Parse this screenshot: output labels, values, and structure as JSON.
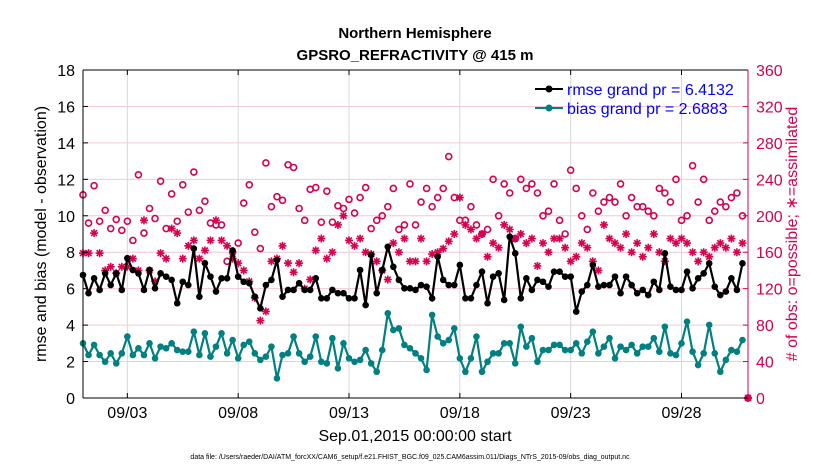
{
  "chart_data": {
    "type": "line",
    "title": [
      "Northern Hemisphere",
      "GPSRO_REFRACTIVITY @ 415 m"
    ],
    "xlabel": "Sep.01,2015 00:00:00 start",
    "ylabel": "rmse and bias (model - observation)",
    "ylabel_right": "# of obs: o=possible; ∗=assimilated",
    "footnote": "data file: /Users/raeder/DAI/ATM_forcXX/CAM6_setup/f.e21.FHIST_BGC.f09_025.CAM6assim.011/Diags_NTrS_2015-09/obs_diag_output.nc",
    "x_unit": "days since Sep.01,2015 00:00:00, 6-hourly",
    "xlim": [
      0,
      30
    ],
    "x_ticks": [
      2,
      7,
      12,
      17,
      22,
      27
    ],
    "x_tick_labels": [
      "09/03",
      "09/08",
      "09/13",
      "09/18",
      "09/23",
      "09/28"
    ],
    "ylim": [
      0,
      18
    ],
    "y_ticks": [
      "0",
      "2",
      "4",
      "6",
      "8",
      "10",
      "12",
      "14",
      "16",
      "18"
    ],
    "ylim_right": [
      0,
      360
    ],
    "y_ticks_right": [
      "0",
      "40",
      "80",
      "120",
      "160",
      "200",
      "240",
      "280",
      "320",
      "360"
    ],
    "grid": true,
    "legend_position": "top-right",
    "colors": {
      "rmse": "#000000",
      "bias": "#008080",
      "obs": "#d6004f",
      "legend_text": "#0000ff"
    },
    "series": [
      {
        "name": "rmse grand pr = 6.4132",
        "axis": "left",
        "marker": "filled-circle",
        "values": [
          6.75,
          5.75,
          6.57,
          5.93,
          6.84,
          6.2,
          6.84,
          5.93,
          7.67,
          7.02,
          6.84,
          5.93,
          7.02,
          6.02,
          6.84,
          6.66,
          6.48,
          5.2,
          6.38,
          6.2,
          8.2,
          5.56,
          7.4,
          6.66,
          5.84,
          6.57,
          6.57,
          8.1,
          6.66,
          6.38,
          6.3,
          5.56,
          4.92,
          6.2,
          6.48,
          7.57,
          5.56,
          5.93,
          5.93,
          6.3,
          5.93,
          5.93,
          6.57,
          5.47,
          5.47,
          5.93,
          5.75,
          5.75,
          5.47,
          5.47,
          7.02,
          5.1,
          7.85,
          5.75,
          7.02,
          8.3,
          7.2,
          6.48,
          6.02,
          6.02,
          5.93,
          6.2,
          6.11,
          5.47,
          7.76,
          6.48,
          6.2,
          6.2,
          7.3,
          5.47,
          5.47,
          6.2,
          6.93,
          5.2,
          6.66,
          6.84,
          5.38,
          8.85,
          7.94,
          5.47,
          6.57,
          5.93,
          6.48,
          6.38,
          6.11,
          6.93,
          6.93,
          6.66,
          6.66,
          4.74,
          5.84,
          6.2,
          7.3,
          6.11,
          6.2,
          6.2,
          6.66,
          5.75,
          6.66,
          6.2,
          5.75,
          5.93,
          5.65,
          6.38,
          5.93,
          7.94,
          6.11,
          5.93,
          5.93,
          6.93,
          6.02,
          6.57,
          6.84,
          7.39,
          6.11,
          5.65,
          5.84,
          6.57,
          5.93,
          7.39
        ]
      },
      {
        "name": "bias grand pr = 2.6883",
        "axis": "left",
        "marker": "filled-circle",
        "values": [
          3.0,
          2.36,
          2.91,
          2.36,
          1.99,
          2.45,
          1.9,
          2.45,
          3.37,
          2.36,
          2.73,
          2.36,
          3.0,
          2.18,
          2.82,
          2.73,
          3.0,
          2.63,
          2.54,
          2.54,
          3.64,
          2.36,
          3.55,
          2.27,
          2.82,
          3.55,
          2.45,
          3.18,
          2.18,
          2.91,
          3.09,
          2.45,
          2.09,
          2.27,
          2.82,
          1.08,
          2.36,
          2.45,
          3.37,
          2.45,
          1.99,
          2.27,
          3.37,
          1.99,
          1.9,
          3.28,
          1.63,
          3.0,
          2.18,
          1.99,
          2.09,
          2.63,
          1.9,
          1.44,
          2.63,
          4.65,
          3.73,
          3.82,
          2.91,
          2.73,
          2.45,
          2.18,
          1.54,
          4.56,
          3.37,
          3.0,
          3.18,
          3.82,
          2.18,
          1.44,
          2.18,
          3.37,
          1.44,
          1.99,
          2.45,
          2.45,
          3.0,
          3.0,
          1.9,
          3.91,
          2.82,
          3.28,
          1.99,
          2.63,
          2.63,
          2.91,
          2.91,
          2.63,
          2.63,
          3.0,
          2.45,
          3.09,
          3.64,
          2.45,
          2.82,
          3.28,
          2.18,
          2.82,
          2.63,
          2.91,
          2.45,
          2.82,
          2.82,
          3.28,
          2.54,
          3.91,
          2.45,
          2.36,
          3.0,
          4.19,
          2.54,
          1.81,
          2.45,
          4.01,
          2.45,
          1.44,
          2.09,
          2.63,
          2.54,
          3.18
        ]
      },
      {
        "axis": "right",
        "marker": "open-circle",
        "label": "possible",
        "values": [
          223,
          192,
          233,
          194,
          206,
          186,
          196,
          184,
          194,
          173,
          245,
          181,
          208,
          197,
          238,
          186,
          224,
          194,
          234,
          204,
          248,
          206,
          216,
          192,
          190,
          190,
          150,
          160,
          170,
          214,
          234,
          182,
          164,
          258,
          210,
          221,
          217,
          256,
          253,
          208,
          195,
          229,
          231,
          193,
          227,
          193,
          211,
          208,
          218,
          203,
          220,
          231,
          186,
          195,
          200,
          210,
          230,
          185,
          190,
          235,
          190,
          215,
          230,
          210,
          220,
          230,
          265,
          220,
          195,
          195,
          210,
          190,
          180,
          185,
          240,
          200,
          235,
          225,
          175,
          240,
          230,
          235,
          225,
          200,
          205,
          235,
          195,
          180,
          250,
          230,
          200,
          185,
          225,
          205,
          215,
          220,
          215,
          235,
          200,
          220,
          210,
          210,
          205,
          200,
          230,
          225,
          215,
          240,
          195,
          200,
          255,
          215,
          240,
          195,
          205,
          215,
          210,
          220,
          225,
          200,
          0
        ]
      },
      {
        "axis": "right",
        "marker": "asterisk",
        "label": "assimilated",
        "values": [
          159,
          159,
          181,
          159,
          140,
          144,
          137,
          144,
          144,
          153,
          140,
          195,
          140,
          128,
          159,
          153,
          186,
          181,
          153,
          167,
          173,
          153,
          162,
          173,
          195,
          173,
          167,
          153,
          148,
          140,
          128,
          110,
          85,
          95,
          150,
          153,
          167,
          148,
          138,
          148,
          120,
          130,
          162,
          175,
          153,
          160,
          190,
          200,
          173,
          167,
          175,
          160,
          158,
          150,
          140,
          130,
          170,
          160,
          175,
          150,
          150,
          175,
          150,
          158,
          160,
          164,
          172,
          180,
          220,
          190,
          185,
          175,
          180,
          155,
          170,
          165,
          190,
          185,
          175,
          180,
          170,
          175,
          145,
          170,
          160,
          175,
          175,
          165,
          150,
          155,
          170,
          165,
          150,
          140,
          190,
          175,
          170,
          165,
          180,
          160,
          170,
          155,
          165,
          180,
          160,
          150,
          175,
          170,
          175,
          170,
          160,
          150,
          160,
          155,
          165,
          170,
          165,
          175,
          160,
          170,
          0
        ]
      }
    ]
  }
}
